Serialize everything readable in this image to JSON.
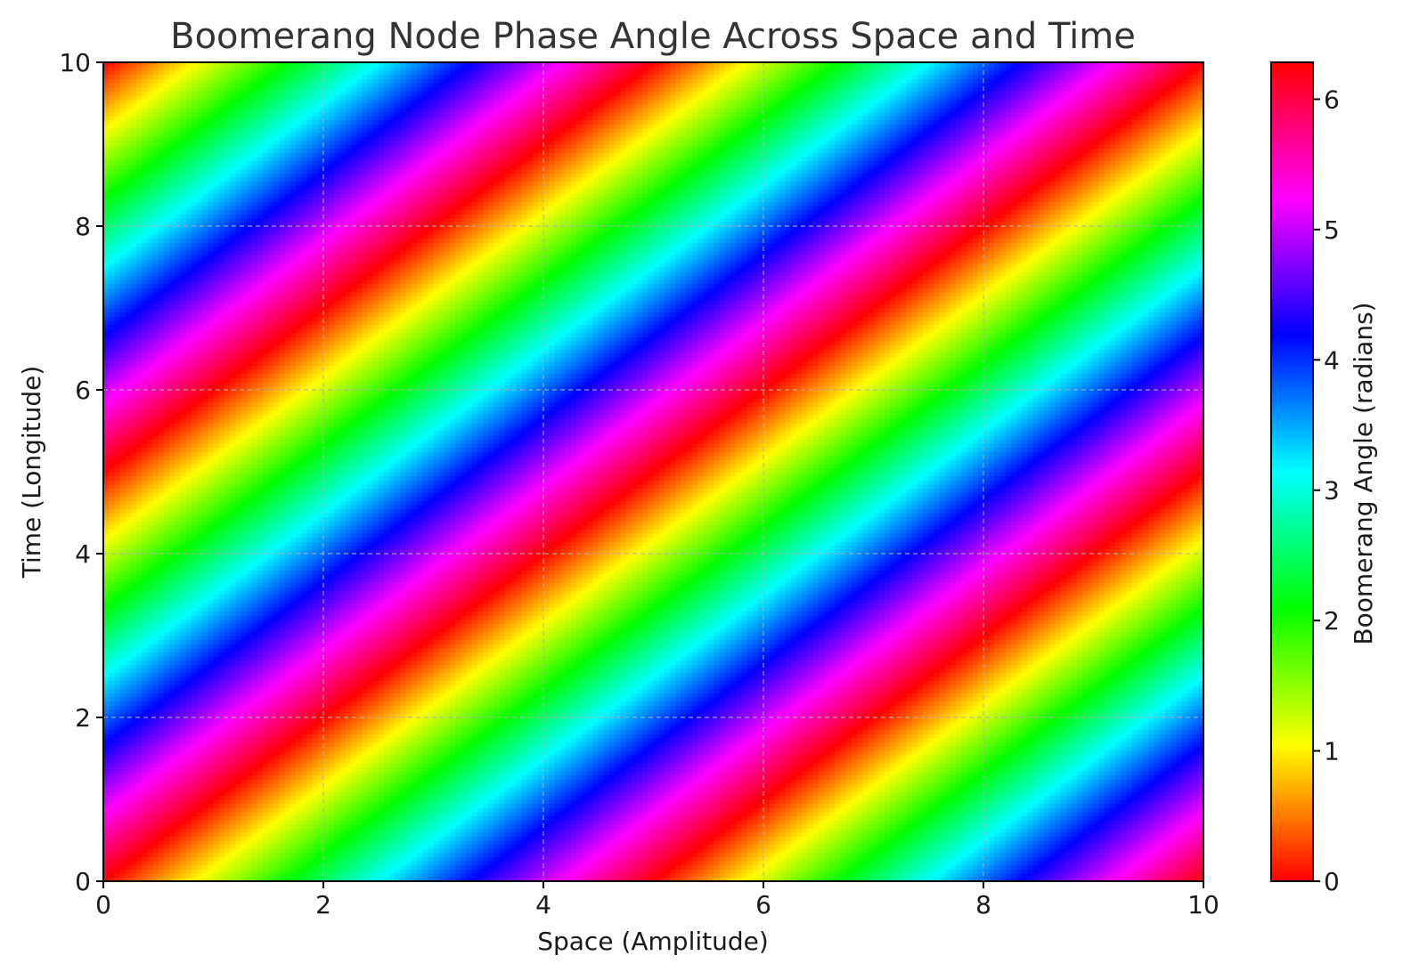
{
  "chart_data": {
    "type": "heatmap",
    "title": "Boomerang Node Phase Angle Across Space and Time",
    "xlabel": "Space (Amplitude)",
    "ylabel": "Time (Longitude)",
    "colorbar_label": "Boomerang Angle (radians)",
    "xlim": [
      0,
      10
    ],
    "ylim": [
      0,
      10
    ],
    "xticks": [
      0,
      2,
      4,
      6,
      8,
      10
    ],
    "yticks": [
      0,
      2,
      4,
      6,
      8,
      10
    ],
    "colorbar_range": [
      0,
      6.2832
    ],
    "colorbar_ticks": [
      0,
      1,
      2,
      3,
      4,
      5,
      6
    ],
    "colormap": "hsv",
    "grid": true,
    "function": "angle = (2*pi*(x - y)/5) mod 2*pi",
    "wavelength_x": 5,
    "grid_resolution": 200
  }
}
